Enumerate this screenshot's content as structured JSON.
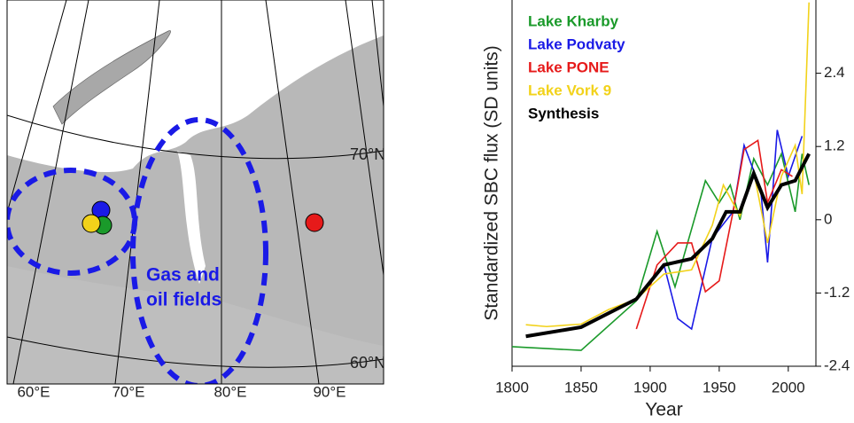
{
  "map": {
    "lat_labels": [
      "70°N",
      "60°N"
    ],
    "lon_labels": [
      "60°E",
      "70°E",
      "80°E",
      "90°E"
    ],
    "region_label": [
      "Gas and",
      "oil fields"
    ]
  },
  "chart_data": {
    "type": "line",
    "xlabel": "Year",
    "ylabel": "Standardized SBC flux (SD units)",
    "xlim": [
      1800,
      2020
    ],
    "xticks": [
      1800,
      1850,
      1900,
      1950,
      2000
    ],
    "ylim": [
      -2.4,
      3.6
    ],
    "yticks": [
      -2.4,
      -1.2,
      0,
      1.2,
      2.4
    ],
    "yaxis_side": "right",
    "series": [
      {
        "name": "Lake Kharby",
        "color": "#1a9a2a",
        "x": [
          1800,
          1850,
          1890,
          1905,
          1918,
          1940,
          1950,
          1958,
          1965,
          1975,
          1985,
          1995,
          2005,
          2010,
          2015
        ],
        "values": [
          -2.08,
          -2.14,
          -1.33,
          -0.19,
          -1.1,
          0.64,
          0.28,
          0.57,
          0,
          1.0,
          0.57,
          1.08,
          0.13,
          1.08,
          0.57
        ]
      },
      {
        "name": "Lake Podvaty",
        "color": "#1a1ae6",
        "x": [
          1890,
          1910,
          1920,
          1930,
          1945,
          1960,
          1968,
          1980,
          1985,
          1992,
          2000,
          2010
        ],
        "values": [
          -1.3,
          -0.74,
          -1.62,
          -1.79,
          -0.3,
          0.13,
          1.22,
          0.5,
          -0.7,
          1.47,
          0.71,
          1.37
        ]
      },
      {
        "name": "Lake PONE",
        "color": "#e61a1a",
        "x": [
          1890,
          1905,
          1920,
          1930,
          1940,
          1950,
          1960,
          1968,
          1978,
          1985,
          1995,
          2003
        ],
        "values": [
          -1.79,
          -0.74,
          -0.38,
          -0.38,
          -1.18,
          -1.0,
          0.13,
          1.15,
          1.3,
          0.28,
          0.82,
          0.71
        ]
      },
      {
        "name": "Lake Vork 9",
        "color": "#f2d21a",
        "x": [
          1810,
          1825,
          1850,
          1870,
          1890,
          1910,
          1930,
          1945,
          1953,
          1965,
          1975,
          1985,
          1995,
          2005,
          2010,
          2015
        ],
        "values": [
          -1.72,
          -1.75,
          -1.71,
          -1.47,
          -1.3,
          -0.89,
          -0.82,
          -0.09,
          0.57,
          0.06,
          0.79,
          -0.38,
          0.71,
          1.22,
          0.42,
          3.56
        ]
      },
      {
        "name": "Synthesis",
        "color": "#000000",
        "x": [
          1810,
          1850,
          1890,
          1910,
          1930,
          1945,
          1955,
          1965,
          1975,
          1985,
          1995,
          2005,
          2015
        ],
        "values": [
          -1.91,
          -1.76,
          -1.3,
          -0.74,
          -0.64,
          -0.31,
          0.13,
          0.13,
          0.76,
          0.2,
          0.57,
          0.64,
          1.08
        ]
      }
    ]
  }
}
